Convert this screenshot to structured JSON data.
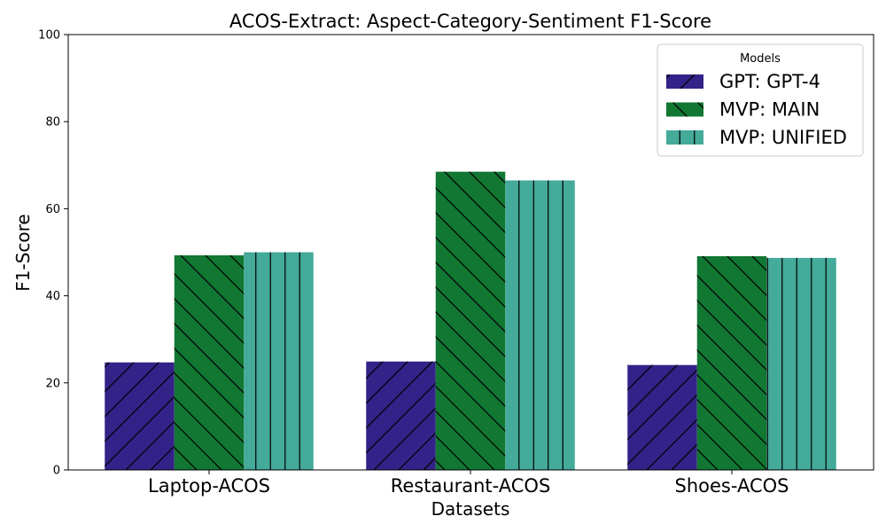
{
  "chart_data": {
    "type": "bar",
    "title": "ACOS-Extract: Aspect-Category-Sentiment F1-Score",
    "xlabel": "Datasets",
    "ylabel": "F1-Score",
    "ylim": [
      0,
      100
    ],
    "yticks": [
      0,
      20,
      40,
      60,
      80,
      100
    ],
    "categories": [
      "Laptop-ACOS",
      "Restaurant-ACOS",
      "Shoes-ACOS"
    ],
    "legend": {
      "title": "Models",
      "placement": "top-right"
    },
    "grid": false,
    "series": [
      {
        "name": "GPT: GPT-4",
        "values": [
          24.7,
          24.9,
          24.1
        ],
        "color": "#332288",
        "hatch": "forward-slash"
      },
      {
        "name": "MVP: MAIN",
        "values": [
          49.3,
          68.5,
          49.1
        ],
        "color": "#117733",
        "hatch": "back-slash"
      },
      {
        "name": "MVP: UNIFIED",
        "values": [
          50.0,
          66.5,
          48.7
        ],
        "color": "#44AA99",
        "hatch": "vertical"
      }
    ]
  }
}
